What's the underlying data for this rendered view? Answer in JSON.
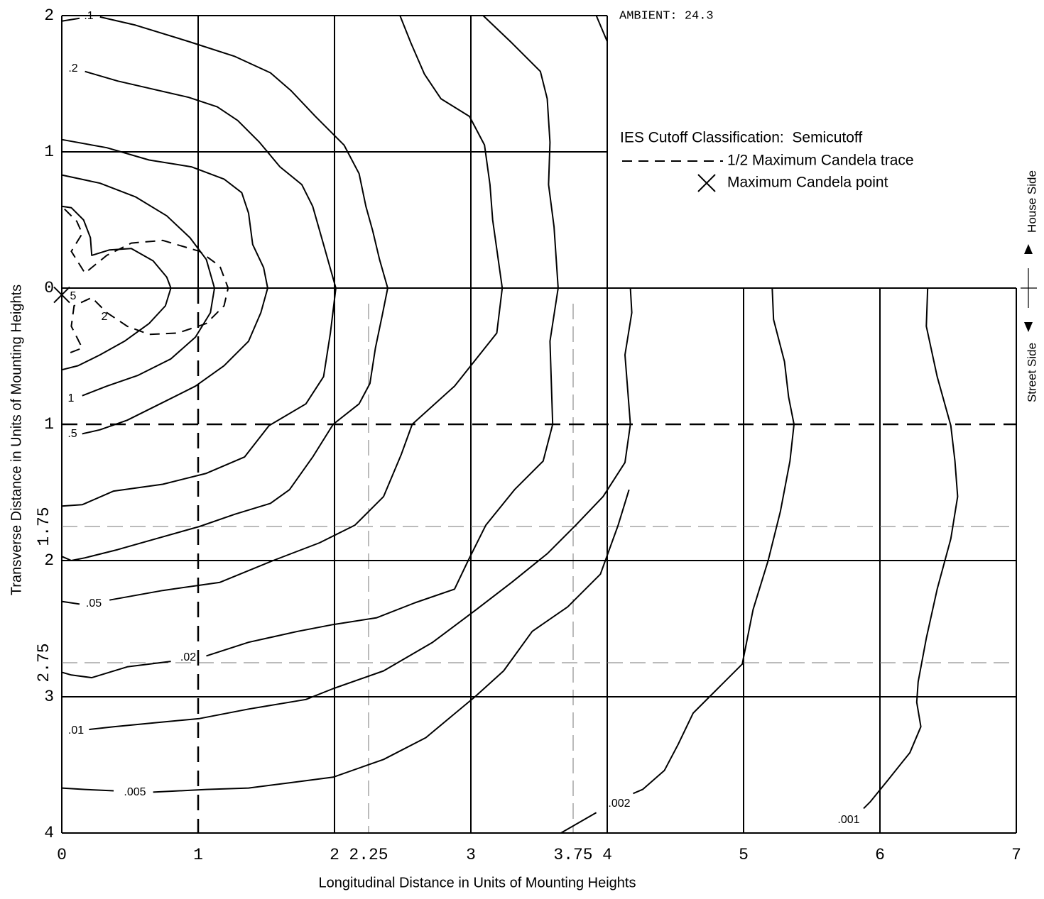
{
  "chart_data": {
    "type": "contour",
    "x_label": "Longitudinal Distance in Units of Mounting Heights",
    "y_label": "Transverse Distance in Units of Mounting Heights",
    "ambient": "AMBIENT: 24.3",
    "cutoff_classification": "IES Cutoff Classification:  Semicutoff",
    "house_side_label": "House Side",
    "street_side_label": "Street Side",
    "xlim": [
      0,
      7
    ],
    "ylim": [
      -2,
      4
    ],
    "xticks": [
      0,
      1,
      2,
      2.25,
      3,
      3.75,
      4,
      5,
      6,
      7
    ],
    "yticks": [
      {
        "value": -2,
        "label": "2"
      },
      {
        "value": -1,
        "label": "1"
      },
      0,
      1,
      1.75,
      2,
      2.75,
      3,
      4
    ],
    "house_side_xlim": [
      0,
      4
    ],
    "road_lines": {
      "x": 1,
      "y": 1
    },
    "color": "#000000",
    "series": [
      {
        "name": "2",
        "x": [
          0,
          0.07,
          0.16,
          0.21,
          0.22,
          0.35,
          0.51,
          0.67,
          0.77,
          0.8,
          0.76,
          0.64,
          0.46,
          0.28,
          0.12,
          0
        ],
        "y": [
          -0.6,
          -0.59,
          -0.5,
          -0.37,
          -0.24,
          -0.28,
          -0.29,
          -0.2,
          -0.08,
          0,
          0.13,
          0.26,
          0.39,
          0.49,
          0.57,
          0.6
        ]
      },
      {
        "name": "1",
        "x": [
          0,
          0.28,
          0.54,
          0.77,
          0.94,
          1.06,
          1.12,
          1.09,
          0.98,
          0.8,
          0.56,
          0.33,
          0.15
        ],
        "y": [
          -0.83,
          -0.77,
          -0.67,
          -0.53,
          -0.37,
          -0.21,
          0,
          0.18,
          0.36,
          0.52,
          0.64,
          0.72,
          0.79
        ]
      },
      {
        "name": ".5",
        "x": [
          0,
          0.33,
          0.64,
          0.95,
          1.19,
          1.32,
          1.37,
          1.4,
          1.48,
          1.51,
          1.46,
          1.37,
          1.19,
          0.98,
          0.74,
          0.48,
          0.28,
          0.15
        ],
        "y": [
          -1.09,
          -1.03,
          -0.94,
          -0.89,
          -0.8,
          -0.7,
          -0.55,
          -0.32,
          -0.15,
          0,
          0.18,
          0.39,
          0.57,
          0.72,
          0.84,
          0.97,
          1.04,
          1.07
        ]
      },
      {
        "name": ".2",
        "x": [
          0.17,
          0.41,
          0.67,
          0.93,
          1.14,
          1.29,
          1.45,
          1.6,
          1.76,
          1.84,
          1.92,
          2.01,
          1.97,
          1.92,
          1.79,
          1.52,
          1.34,
          1.06,
          0.74,
          0.38,
          0.15,
          0
        ],
        "y": [
          -1.59,
          -1.52,
          -1.46,
          -1.4,
          -1.33,
          -1.23,
          -1.07,
          -0.89,
          -0.76,
          -0.6,
          -0.32,
          0,
          0.33,
          0.65,
          0.85,
          1.01,
          1.24,
          1.36,
          1.44,
          1.49,
          1.59,
          1.6
        ]
      },
      {
        "name": ".1",
        "x": [
          0,
          0.13,
          null,
          0.28,
          0.54,
          0.93,
          1.27,
          1.53,
          1.68,
          1.86,
          2.07,
          2.18,
          2.23,
          2.28,
          2.33,
          2.39,
          2.35,
          2.3,
          2.26,
          2.18,
          1.99,
          1.84,
          1.67,
          1.53,
          1.27,
          1.01,
          0.69,
          0.41,
          0.17,
          0.07,
          0
        ],
        "y": [
          -1.96,
          -1.98,
          null,
          -1.99,
          -1.93,
          -1.81,
          -1.7,
          -1.58,
          -1.45,
          -1.26,
          -1.05,
          -0.84,
          -0.6,
          -0.42,
          -0.21,
          0,
          0.2,
          0.44,
          0.7,
          0.85,
          1,
          1.24,
          1.48,
          1.58,
          1.66,
          1.75,
          1.84,
          1.92,
          1.98,
          2,
          1.97
        ]
      },
      {
        "name": ".05",
        "x": [
          2.48,
          2.56,
          2.66,
          2.78,
          2.99,
          3.1,
          3.14,
          3.16,
          3.23,
          3.19,
          2.88,
          2.57,
          2.49,
          2.36,
          2.15,
          1.89,
          1.55,
          1.16,
          0.74,
          0.35,
          null,
          0.13,
          0
        ],
        "y": [
          -2,
          -1.8,
          -1.57,
          -1.39,
          -1.26,
          -1.05,
          -0.76,
          -0.5,
          0,
          0.33,
          0.72,
          1,
          1.22,
          1.53,
          1.74,
          1.87,
          2,
          2.16,
          2.22,
          2.29,
          null,
          2.32,
          2.3
        ]
      },
      {
        "name": ".02",
        "x": [
          3.09,
          3.3,
          3.51,
          3.56,
          3.58,
          3.57,
          3.61,
          3.64,
          3.58,
          3.6,
          3.53,
          3.32,
          3.11,
          2.98,
          2.88,
          2.59,
          2.31,
          1.99,
          1.73,
          1.37,
          1.06,
          null,
          0.8,
          0.48,
          0.22,
          0.07,
          0
        ],
        "y": [
          -2,
          -1.8,
          -1.59,
          -1.39,
          -1.07,
          -0.76,
          -0.45,
          0,
          0.39,
          1,
          1.27,
          1.48,
          1.74,
          2,
          2.21,
          2.31,
          2.42,
          2.47,
          2.52,
          2.6,
          2.7,
          null,
          2.74,
          2.78,
          2.86,
          2.84,
          2.82
        ]
      },
      {
        "name": ".01",
        "x": [
          3.92,
          4,
          null,
          4.17,
          4.18,
          4.13,
          4.17,
          4.13,
          3.97,
          3.77,
          3.56,
          3.3,
          3.04,
          2.72,
          2.36,
          1.99,
          1.79,
          1.37,
          1.01,
          0.69,
          0.38,
          0.2
        ],
        "y": [
          -2,
          -1.81,
          null,
          0,
          0.18,
          0.49,
          1,
          1.28,
          1.53,
          1.74,
          1.95,
          2.16,
          2.36,
          2.6,
          2.81,
          2.94,
          3.02,
          3.09,
          3.16,
          3.19,
          3.22,
          3.24
        ]
      },
      {
        "name": ".005",
        "x": [
          0,
          0.17,
          0.38,
          null,
          0.67,
          1.06,
          1.37,
          1.68,
          1.99,
          2.36,
          2.67,
          3.03,
          3.24,
          3.45,
          3.71,
          3.95,
          4.08,
          4.16
        ],
        "y": [
          3.67,
          3.68,
          3.69,
          null,
          3.7,
          3.68,
          3.67,
          3.63,
          3.59,
          3.46,
          3.3,
          3,
          2.81,
          2.52,
          2.34,
          2.1,
          1.74,
          1.48
        ]
      },
      {
        "name": ".002",
        "x": [
          5.21,
          5.22,
          5.3,
          5.33,
          5.37,
          5.34,
          5.27,
          5.18,
          5.07,
          4.99,
          4.81,
          4.63,
          4.52,
          4.42,
          4.26,
          4.19,
          null,
          3.92,
          3.66
        ],
        "y": [
          0,
          0.23,
          0.54,
          0.8,
          1,
          1.27,
          1.64,
          2,
          2.36,
          2.76,
          2.94,
          3.12,
          3.35,
          3.54,
          3.68,
          3.71,
          null,
          3.85,
          4
        ]
      },
      {
        "name": ".001",
        "x": [
          6.35,
          6.34,
          6.42,
          6.52,
          6.55,
          6.57,
          6.52,
          6.42,
          6.34,
          6.28,
          6.27,
          6.3,
          6.22,
          6.06,
          5.93,
          5.88
        ],
        "y": [
          0,
          0.28,
          0.65,
          1.01,
          1.27,
          1.53,
          1.84,
          2.21,
          2.57,
          2.89,
          3.04,
          3.22,
          3.41,
          3.61,
          3.77,
          3.82
        ]
      }
    ],
    "half_max_trace": {
      "name": "1/2 Maximum Candela trace",
      "x": [
        0.02,
        0.11,
        0.15,
        0.07,
        0.17,
        0.33,
        0.51,
        0.74,
        1.01,
        1.16,
        1.22,
        1.19,
        1.06,
        0.85,
        0.64,
        0.48,
        0.33,
        0.22,
        0.09,
        0.07,
        0.15,
        0.02
      ],
      "y": [
        -0.58,
        -0.49,
        -0.4,
        -0.27,
        -0.11,
        -0.24,
        -0.33,
        -0.35,
        -0.27,
        -0.16,
        0,
        0.13,
        0.26,
        0.33,
        0.34,
        0.28,
        0.18,
        0.07,
        0.13,
        0.28,
        0.44,
        0.49
      ]
    },
    "max_point": {
      "name": "Maximum Candela point",
      "x": 0,
      "y": 0.05,
      "label": "5"
    }
  }
}
